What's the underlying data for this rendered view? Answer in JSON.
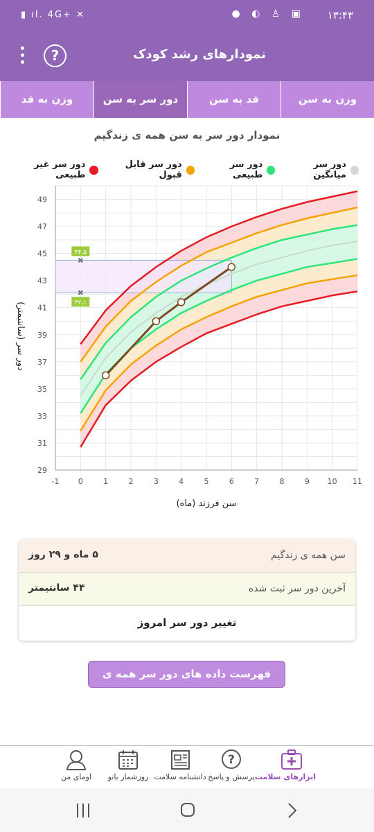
{
  "status": {
    "time": "۱۳:۴۳",
    "network": "4G+"
  },
  "appbar": {
    "title": "نمودارهای رشد کودک",
    "help_symbol": "?"
  },
  "tabs": [
    {
      "label": "وزن به سن"
    },
    {
      "label": "قد به سن"
    },
    {
      "label": "دور سر به سن"
    },
    {
      "label": "وزن به قد"
    }
  ],
  "chart_title": "نمودار دور سر به سن همه ی زندگیم",
  "legend": [
    {
      "label": "دور سر غیر طبیعی",
      "color": "#e51c23"
    },
    {
      "label": "دور سر قابل قبول",
      "color": "#f5a300"
    },
    {
      "label": "دور سر طبیعی",
      "color": "#2ee57a"
    },
    {
      "label": "دور سر میانگین",
      "color": "#d6d6d6"
    }
  ],
  "chart_data": {
    "type": "line",
    "xlabel": "سن فرزند (ماه)",
    "ylabel": "دور سر (سانتیمتر)",
    "xlim": [
      -1,
      11
    ],
    "ylim": [
      29,
      50
    ],
    "x_ticks": [
      -1,
      0,
      1,
      2,
      3,
      4,
      5,
      6,
      7,
      8,
      9,
      10,
      11
    ],
    "y_ticks": [
      29,
      31,
      33,
      35,
      37,
      39,
      41,
      43,
      45,
      47,
      49
    ],
    "grid": true,
    "curve_x": [
      0,
      1,
      2,
      3,
      4,
      5,
      6,
      7,
      8,
      9,
      10,
      11
    ],
    "reference_curves": [
      {
        "role": "abnormal_high",
        "color": "#e51c23",
        "y": [
          38.3,
          40.8,
          42.6,
          44.0,
          45.2,
          46.2,
          47.0,
          47.7,
          48.3,
          48.8,
          49.2,
          49.6
        ]
      },
      {
        "role": "acceptable_high",
        "color": "#f5a300",
        "y": [
          37.0,
          39.6,
          41.5,
          42.9,
          44.1,
          45.1,
          45.8,
          46.5,
          47.1,
          47.6,
          48.0,
          48.4
        ]
      },
      {
        "role": "normal_high",
        "color": "#2ee57a",
        "y": [
          35.7,
          38.4,
          40.3,
          41.8,
          43.0,
          43.9,
          44.7,
          45.4,
          46.0,
          46.4,
          46.8,
          47.1
        ]
      },
      {
        "role": "median",
        "color": "#c6dcc8",
        "y": [
          34.5,
          37.3,
          39.2,
          40.6,
          41.8,
          42.7,
          43.5,
          44.2,
          44.7,
          45.2,
          45.6,
          45.9
        ]
      },
      {
        "role": "normal_low",
        "color": "#2ee57a",
        "y": [
          33.2,
          36.1,
          38.0,
          39.4,
          40.6,
          41.5,
          42.3,
          43.0,
          43.5,
          44.0,
          44.3,
          44.6
        ]
      },
      {
        "role": "acceptable_low",
        "color": "#f5a300",
        "y": [
          31.9,
          34.9,
          36.8,
          38.2,
          39.4,
          40.3,
          41.1,
          41.8,
          42.3,
          42.8,
          43.1,
          43.4
        ]
      },
      {
        "role": "abnormal_low",
        "color": "#e51c23",
        "y": [
          30.7,
          33.8,
          35.6,
          37.0,
          38.1,
          39.1,
          39.8,
          40.5,
          41.1,
          41.5,
          41.9,
          42.2
        ]
      }
    ],
    "child": {
      "x": [
        1,
        3,
        4,
        6
      ],
      "y": [
        36,
        40,
        41.4,
        44
      ],
      "color": "#7a4a22"
    },
    "range_markers": [
      {
        "label": "۴۴،۵",
        "y": 44.5
      },
      {
        "label": "۴۲،۱",
        "y": 42.1
      }
    ],
    "range_x_to": 6
  },
  "card": {
    "age_label": "سن همه ی زندگیم",
    "age_value": "۵ ماه و ۲۹ روز",
    "last_label": "آخرین دور سر ثبت شده",
    "last_value": "۴۴ سانتیمتر",
    "change_label": "تغییر دور سر امروز"
  },
  "list_button": "فهرست داده های دور سر همه ی زندگیم",
  "bottom_nav": [
    {
      "label": "ابزارهای سلامت",
      "icon": "medical-kit-icon",
      "active": true
    },
    {
      "label": "پرسش و پاسخ",
      "icon": "question-icon",
      "active": false
    },
    {
      "label": "دانشنامه سلامت",
      "icon": "newspaper-icon",
      "active": false
    },
    {
      "label": "روزشمار بانو",
      "icon": "calendar-icon",
      "active": false
    },
    {
      "label": "اومای من",
      "icon": "user-icon",
      "active": false
    }
  ]
}
